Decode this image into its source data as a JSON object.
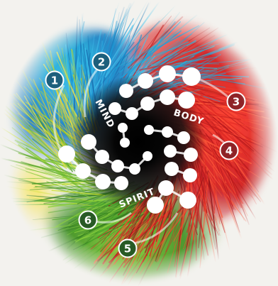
{
  "labels": {
    "mind": "MIND",
    "body": "BODY",
    "spirit": "SPIRIT"
  },
  "badges": [
    {
      "id": "1",
      "text": "1",
      "color": "#1d5f7c"
    },
    {
      "id": "2",
      "text": "2",
      "color": "#1d5f7c"
    },
    {
      "id": "3",
      "text": "3",
      "color": "#8f2327"
    },
    {
      "id": "4",
      "text": "4",
      "color": "#8f2327"
    },
    {
      "id": "5",
      "text": "5",
      "color": "#285a25"
    },
    {
      "id": "6",
      "text": "6",
      "color": "#285a25"
    }
  ],
  "colors": {
    "mind_blue": "#1aa6e0",
    "body_red": "#e0262a",
    "spirit_green": "#6fbf2e",
    "spirit_yellow": "#f2d21b",
    "core": "#050505",
    "circle_fill": "#ffffff"
  }
}
